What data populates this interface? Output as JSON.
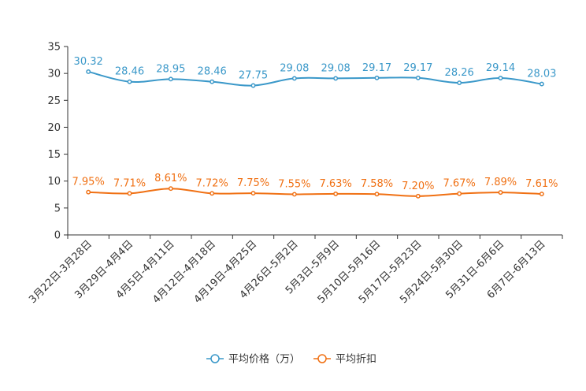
{
  "chart_data": {
    "type": "line",
    "title": "",
    "xlabel": "",
    "ylabel": "",
    "ylim": [
      0,
      35
    ],
    "yticks": [
      0,
      5,
      10,
      15,
      20,
      25,
      30,
      35
    ],
    "categories": [
      "3月22日-3月28日",
      "3月29日-4月4日",
      "4月5日-4月11日",
      "4月12日-4月18日",
      "4月19日-4月25日",
      "4月26日-5月2日",
      "5月3日-5月9日",
      "5月10日-5月16日",
      "5月17日-5月23日",
      "5月24日-5月30日",
      "5月31日-6月6日",
      "6月7日-6月13日"
    ],
    "series": [
      {
        "name": "平均价格（万）",
        "color": "#3a98c9",
        "values": [
          30.32,
          28.46,
          28.95,
          28.46,
          27.75,
          29.08,
          29.08,
          29.17,
          29.17,
          28.26,
          29.14,
          28.03
        ],
        "labels": [
          "30.32",
          "28.46",
          "28.95",
          "28.46",
          "27.75",
          "29.08",
          "29.08",
          "29.17",
          "29.17",
          "28.26",
          "29.14",
          "28.03"
        ]
      },
      {
        "name": "平均折扣",
        "color": "#f07013",
        "values": [
          7.95,
          7.71,
          8.61,
          7.72,
          7.75,
          7.55,
          7.63,
          7.58,
          7.2,
          7.67,
          7.89,
          7.61
        ],
        "labels": [
          "7.95%",
          "7.71%",
          "8.61%",
          "7.72%",
          "7.75%",
          "7.55%",
          "7.63%",
          "7.58%",
          "7.20%",
          "7.67%",
          "7.89%",
          "7.61%"
        ]
      }
    ],
    "legend_position": "bottom-center"
  }
}
